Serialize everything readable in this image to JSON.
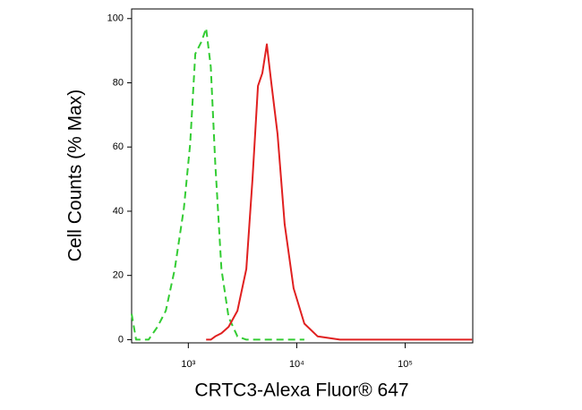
{
  "chart_data": {
    "type": "line",
    "xlabel": "CRTC3-Alexa Fluor® 647",
    "ylabel": "Cell Counts (% Max)",
    "log_x": true,
    "x": [
      300,
      330,
      430,
      520,
      620,
      750,
      910,
      1040,
      1160,
      1330,
      1460,
      1610,
      1770,
      2020,
      2350,
      2840,
      3430,
      3910,
      4390,
      4820,
      5300,
      5830,
      6650,
      7740,
      9360,
      11750,
      15600,
      25000,
      94500,
      414000
    ],
    "series": [
      {
        "color": "#33cc33",
        "dashed": true,
        "values": [
          8,
          0,
          0,
          4,
          9,
          22,
          41,
          61,
          89,
          93,
          97,
          85,
          55,
          22,
          7,
          1,
          0,
          0,
          0,
          0,
          0,
          0,
          0,
          0,
          0,
          0,
          null,
          null,
          null,
          null
        ]
      },
      {
        "color": "#e02020",
        "dashed": false,
        "values": [
          null,
          null,
          null,
          null,
          null,
          null,
          null,
          null,
          null,
          null,
          0,
          0,
          1,
          2,
          4,
          9,
          22,
          50,
          79,
          83,
          92,
          80,
          64,
          36,
          16,
          5,
          1,
          0,
          0,
          0
        ]
      }
    ],
    "xlim": [
      300,
      420000
    ],
    "xticks": [
      {
        "value": 1000,
        "label": "10³"
      },
      {
        "value": 10000,
        "label": "10⁴"
      },
      {
        "value": 100000,
        "label": "10⁵"
      }
    ],
    "ylim": [
      -1,
      103
    ],
    "yticks": [
      0,
      20,
      40,
      60,
      80,
      100
    ]
  }
}
